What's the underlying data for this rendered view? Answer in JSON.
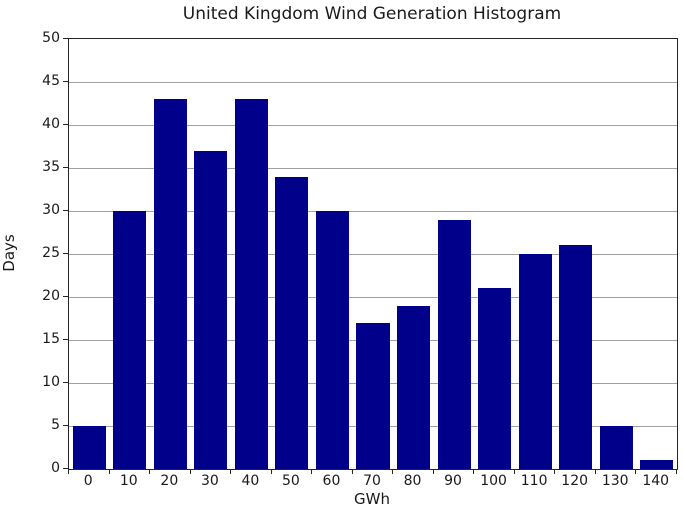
{
  "chart_data": {
    "type": "bar",
    "title": "United Kingdom Wind Generation Histogram",
    "xlabel": "GWh",
    "ylabel": "Days",
    "categories": [
      "0",
      "10",
      "20",
      "30",
      "40",
      "50",
      "60",
      "70",
      "80",
      "90",
      "100",
      "110",
      "120",
      "130",
      "140"
    ],
    "values": [
      5,
      30,
      43,
      37,
      43,
      34,
      30,
      17,
      19,
      29,
      21,
      25,
      26,
      5,
      1
    ],
    "ylim": [
      0,
      50
    ],
    "ytick_step": 5,
    "grid": "horizontal-only",
    "legend": "none",
    "bar_color": "#00008B",
    "grid_color": "#a0a0a0",
    "axis_color": "#262626",
    "text_color": "#1a1a1a"
  }
}
